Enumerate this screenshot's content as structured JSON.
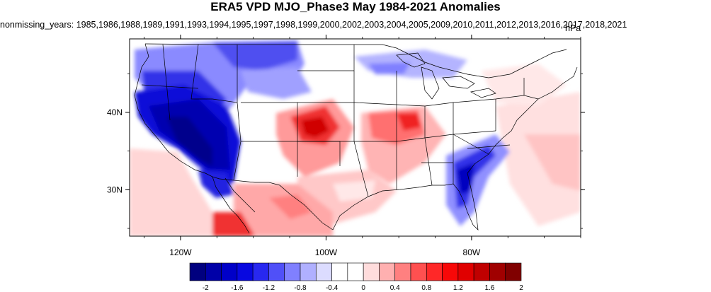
{
  "title": "ERA5 VPD MJO_Phase3 May 1984-2021 Anomalies",
  "subtitle": "nonmissing_years: 1985,1986,1988,1989,1991,1993,1994,1995,1997,1998,1999,2000,2002,2003,2004,2005,2009,2010,2011,2012,2013,2016,2017,2018,2021",
  "units": "hPa",
  "map": {
    "region": "Continental United States",
    "lon_range": [
      -127,
      -65
    ],
    "lat_range": [
      24,
      49.5
    ],
    "x_ticks": [
      {
        "lon": -120,
        "label": "120W"
      },
      {
        "lon": -100,
        "label": "100W"
      },
      {
        "lon": -80,
        "label": "80W"
      }
    ],
    "y_ticks": [
      {
        "lat": 40,
        "label": "40N"
      },
      {
        "lat": 30,
        "label": "30N"
      }
    ],
    "anomaly_regions": [
      {
        "name": "California / Nevada / Arizona",
        "sign": "negative",
        "approx_value": -2.0
      },
      {
        "name": "Pacific Northwest / Northern Rockies",
        "sign": "negative",
        "approx_value": -1.2
      },
      {
        "name": "Northern Plains",
        "sign": "negative",
        "approx_value": -0.6
      },
      {
        "name": "Kansas / Oklahoma panhandle",
        "sign": "positive",
        "approx_value": 1.6
      },
      {
        "name": "Mississippi Valley / Missouri",
        "sign": "positive",
        "approx_value": 1.0
      },
      {
        "name": "Texas / Louisiana Gulf coast",
        "sign": "positive",
        "approx_value": 0.6
      },
      {
        "name": "Northern Mexico",
        "sign": "positive",
        "approx_value": 0.8
      },
      {
        "name": "Florida / Georgia / Carolinas coast",
        "sign": "negative",
        "approx_value": -1.2
      },
      {
        "name": "Western Atlantic",
        "sign": "positive",
        "approx_value": 0.4
      }
    ]
  },
  "colorbar": {
    "levels": [
      "-2",
      "-1.6",
      "-1.2",
      "-0.8",
      "-0.4",
      "0",
      "0.4",
      "0.8",
      "1.2",
      "1.6",
      "2"
    ],
    "colors": [
      "#00007f",
      "#0000a8",
      "#0000c8",
      "#0808e0",
      "#2828f0",
      "#5050f8",
      "#8080ff",
      "#b0b0ff",
      "#dcdcff",
      "#ffffff",
      "#ffffff",
      "#ffdcdc",
      "#ffb0b0",
      "#ff8080",
      "#ff5050",
      "#ff2828",
      "#f80808",
      "#e00000",
      "#c00000",
      "#a00000",
      "#800000"
    ]
  },
  "colors": {
    "strong_negative": "#0000c8",
    "strong_positive": "#e00000",
    "neutral": "#ffffff",
    "boundaries": "#000000"
  }
}
